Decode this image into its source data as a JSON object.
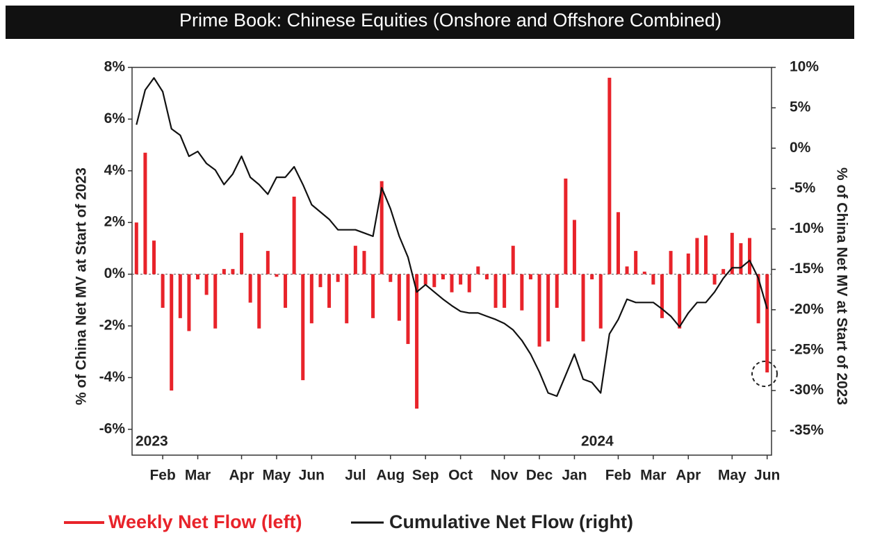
{
  "chart_data": {
    "type": "combo",
    "title": "Prime Book: Chinese Equities (Onshore and Offshore Combined)",
    "y_label": "% of China Net MV at Start of 2023",
    "y2_label": "% of China Net MV at Start of 2023",
    "annotations": [
      "2023",
      "2024"
    ],
    "categories": [
      null,
      null,
      null,
      "Feb",
      null,
      null,
      null,
      "Mar",
      null,
      null,
      null,
      null,
      "Apr",
      null,
      null,
      null,
      "May",
      null,
      null,
      null,
      "Jun",
      null,
      null,
      null,
      null,
      "Jul",
      null,
      null,
      null,
      "Aug",
      null,
      null,
      null,
      "Sep",
      null,
      null,
      null,
      "Oct",
      null,
      null,
      null,
      null,
      "Nov",
      null,
      null,
      null,
      "Dec",
      null,
      null,
      null,
      "Jan",
      null,
      null,
      null,
      null,
      "Feb",
      null,
      null,
      null,
      "Mar",
      null,
      null,
      null,
      "Apr",
      null,
      null,
      null,
      null,
      "May",
      null,
      null,
      null,
      "Jun"
    ],
    "series": [
      {
        "name": "Weekly Net Flow (left)",
        "color": "#e8232a",
        "type": "bar",
        "values": [
          2.0,
          4.7,
          1.3,
          -1.3,
          -4.5,
          -1.7,
          -2.2,
          -0.2,
          -0.8,
          -2.1,
          0.2,
          0.2,
          1.6,
          -1.1,
          -2.1,
          0.9,
          -0.1,
          -1.3,
          3.0,
          -4.1,
          -1.9,
          -0.5,
          -1.3,
          -0.3,
          -1.9,
          1.1,
          0.9,
          -1.7,
          3.6,
          -0.3,
          -1.8,
          -2.7,
          -5.2,
          -0.4,
          -0.5,
          -0.2,
          -0.7,
          -0.4,
          -0.7,
          0.3,
          -0.2,
          -1.3,
          -1.3,
          1.1,
          -1.4,
          -0.2,
          -2.8,
          -2.6,
          -1.3,
          3.7,
          2.1,
          -2.6,
          -0.2,
          -2.1,
          7.6,
          2.4,
          0.3,
          0.9,
          0.1,
          -0.4,
          -1.7,
          0.9,
          -2.1,
          0.8,
          1.4,
          1.5,
          -0.4,
          0.2,
          1.6,
          1.2,
          1.4,
          -1.9,
          -3.8
        ]
      },
      {
        "name": "Cumulative Net Flow (right)",
        "color": "#111111",
        "type": "line",
        "axis": "y2",
        "values": [
          2.9,
          7.2,
          8.7,
          7.0,
          2.4,
          1.6,
          -1.0,
          -0.4,
          -1.9,
          -2.7,
          -4.5,
          -3.2,
          -1.0,
          -3.6,
          -4.5,
          -5.7,
          -3.6,
          -3.6,
          -2.3,
          -4.5,
          -7.0,
          -7.9,
          -8.8,
          -10.1,
          -10.1,
          -10.1,
          -10.5,
          -10.9,
          -4.9,
          -7.5,
          -10.9,
          -13.5,
          -17.8,
          -16.9,
          -17.8,
          -18.7,
          -19.5,
          -20.2,
          -20.4,
          -20.4,
          -20.8,
          -21.2,
          -21.7,
          -22.5,
          -23.8,
          -25.5,
          -27.7,
          -30.3,
          -30.7,
          -28.1,
          -25.5,
          -28.6,
          -29.0,
          -30.3,
          -23.0,
          -21.2,
          -18.7,
          -19.1,
          -19.1,
          -19.1,
          -19.9,
          -20.8,
          -22.1,
          -20.4,
          -19.1,
          -19.1,
          -17.8,
          -16.1,
          -14.8,
          -14.8,
          -13.9,
          -16.1,
          -19.9
        ]
      }
    ],
    "ylim": [
      -7,
      8
    ],
    "yticks": [
      {
        "value": -6,
        "label": "-6%"
      },
      {
        "value": -4,
        "label": "-4%"
      },
      {
        "value": -2,
        "label": "-2%"
      },
      {
        "value": 0,
        "label": "0%"
      },
      {
        "value": 2,
        "label": "2%"
      },
      {
        "value": 4,
        "label": "4%"
      },
      {
        "value": 6,
        "label": "6%"
      },
      {
        "value": 8,
        "label": "8%"
      }
    ],
    "y2lim": [
      -38,
      10
    ],
    "y2ticks": [
      {
        "value": -35,
        "label": "-35%"
      },
      {
        "value": -30,
        "label": "-30%"
      },
      {
        "value": -25,
        "label": "-25%"
      },
      {
        "value": -20,
        "label": "-20%"
      },
      {
        "value": -15,
        "label": "-15%"
      },
      {
        "value": -10,
        "label": "-10%"
      },
      {
        "value": -5,
        "label": "-5%"
      },
      {
        "value": 0,
        "label": "0%"
      },
      {
        "value": 5,
        "label": "5%"
      },
      {
        "value": 10,
        "label": "10%"
      }
    ]
  }
}
